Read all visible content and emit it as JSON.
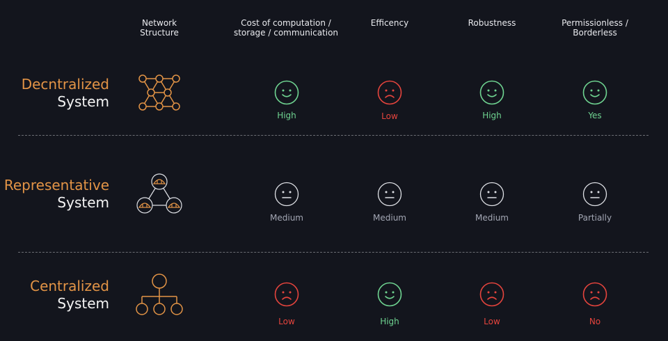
{
  "columns": [
    "Network\nStructure",
    "Cost of computation /\nstorage / communication",
    "Efficency",
    "Robustness",
    "Permissionless /\nBorderless"
  ],
  "rows": [
    {
      "title_accent": "Decntralized",
      "title_plain": "System",
      "structure_icon": "decentralized-mesh-network",
      "cells": [
        {
          "rating": "High",
          "sentiment": "happy"
        },
        {
          "rating": "Low",
          "sentiment": "sad"
        },
        {
          "rating": "High",
          "sentiment": "happy"
        },
        {
          "rating": "Yes",
          "sentiment": "happy"
        }
      ]
    },
    {
      "title_accent": "Representative",
      "title_plain": "System",
      "structure_icon": "representative-triangle-network",
      "cells": [
        {
          "rating": "Medium",
          "sentiment": "neutral"
        },
        {
          "rating": "Medium",
          "sentiment": "neutral"
        },
        {
          "rating": "Medium",
          "sentiment": "neutral"
        },
        {
          "rating": "Partially",
          "sentiment": "neutral"
        }
      ]
    },
    {
      "title_accent": "Centralized",
      "title_plain": "System",
      "structure_icon": "centralized-hub-network",
      "cells": [
        {
          "rating": "Low",
          "sentiment": "sad"
        },
        {
          "rating": "High",
          "sentiment": "happy"
        },
        {
          "rating": "Low",
          "sentiment": "sad"
        },
        {
          "rating": "No",
          "sentiment": "sad"
        }
      ]
    }
  ],
  "colors": {
    "background": "#13151d",
    "accent": "#e39446",
    "good": "#6fd491",
    "bad": "#e5443d",
    "neutral_face": "#dfe1e6",
    "neutral_text": "#a3a7b4",
    "divider": "#6c6e74"
  }
}
